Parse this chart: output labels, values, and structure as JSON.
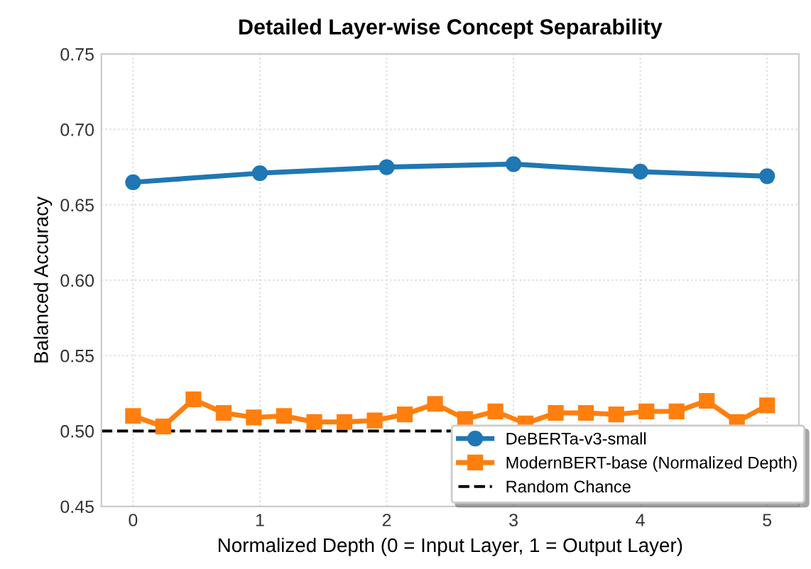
{
  "chart_data": {
    "type": "line",
    "title": "Detailed Layer-wise Concept Separability",
    "xlabel": "Normalized Depth (0 = Input Layer, 1 = Output Layer)",
    "ylabel": "Balanced Accuracy",
    "series": [
      {
        "name": "DeBERTa-v3-small",
        "color": "#1f77b4",
        "marker": "circle",
        "x": [
          0,
          1,
          2,
          3,
          4,
          5
        ],
        "values": [
          0.665,
          0.671,
          0.675,
          0.677,
          0.672,
          0.669
        ]
      },
      {
        "name": "ModernBERT-base (Normalized Depth)",
        "color": "#ff7f0e",
        "marker": "square",
        "x": [
          0,
          0.238,
          0.476,
          0.714,
          0.952,
          1.19,
          1.429,
          1.667,
          1.905,
          2.143,
          2.381,
          2.619,
          2.857,
          3.095,
          3.333,
          3.571,
          3.81,
          4.048,
          4.286,
          4.524,
          4.762,
          5
        ],
        "values": [
          0.51,
          0.503,
          0.521,
          0.512,
          0.509,
          0.51,
          0.506,
          0.506,
          0.507,
          0.511,
          0.518,
          0.508,
          0.513,
          0.505,
          0.512,
          0.512,
          0.511,
          0.513,
          0.513,
          0.52,
          0.506,
          0.517
        ]
      }
    ],
    "ref_lines": [
      {
        "axis": "y",
        "value": 0.5,
        "label": "Random Chance",
        "color": "#000000",
        "line_style": "dashed"
      }
    ],
    "xlim": [
      -0.25,
      5.25
    ],
    "xticks": [
      0,
      1,
      2,
      3,
      4,
      5
    ],
    "ylim": [
      0.45,
      0.75
    ],
    "yticks": [
      {
        "value": 0.45,
        "label": "0.45"
      },
      {
        "value": 0.5,
        "label": "0.50"
      },
      {
        "value": 0.55,
        "label": "0.55"
      },
      {
        "value": 0.6,
        "label": "0.60"
      },
      {
        "value": 0.65,
        "label": "0.65"
      },
      {
        "value": 0.7,
        "label": "0.70"
      },
      {
        "value": 0.75,
        "label": "0.75"
      }
    ],
    "grid": true,
    "legend": "bottom right"
  }
}
